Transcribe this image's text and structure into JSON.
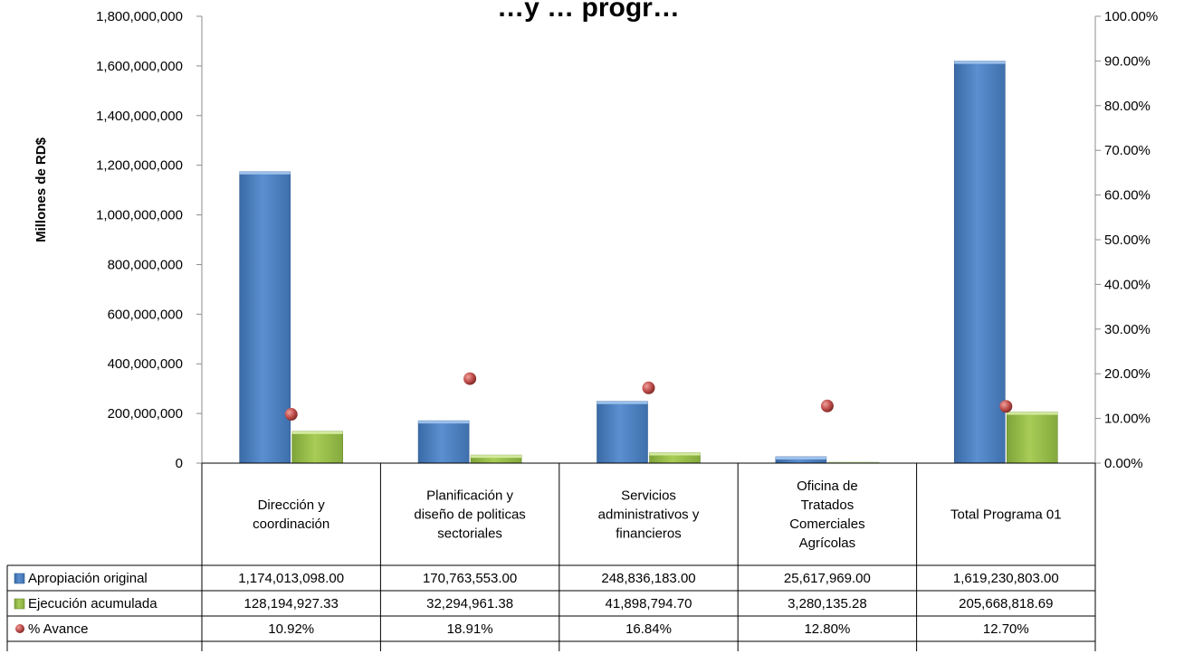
{
  "chart_data": {
    "type": "bar",
    "title": "…y … progr…",
    "ylabel": "Millones de RD$",
    "xlabel": "",
    "ylim": [
      0,
      1800000000
    ],
    "y2lim": [
      0,
      100
    ],
    "y_ticks": [
      "0",
      "200,000,000",
      "400,000,000",
      "600,000,000",
      "800,000,000",
      "1,000,000,000",
      "1,200,000,000",
      "1,400,000,000",
      "1,600,000,000",
      "1,800,000,000"
    ],
    "y2_ticks": [
      "0.00%",
      "10.00%",
      "20.00%",
      "30.00%",
      "40.00%",
      "50.00%",
      "60.00%",
      "70.00%",
      "80.00%",
      "90.00%",
      "100.00%"
    ],
    "categories": [
      [
        "Dirección y",
        "coordinación"
      ],
      [
        "Planificación y",
        "diseño de politicas",
        "sectoriales"
      ],
      [
        "Servicios",
        "administrativos y",
        "financieros"
      ],
      [
        "Oficina de",
        "Tratados",
        "Comerciales",
        "Agrícolas"
      ],
      [
        "Total Programa 01"
      ]
    ],
    "series": [
      {
        "name": "Apropiación original",
        "kind": "bar",
        "color": "#4F81BD",
        "values": [
          1174013098.0,
          170763553.0,
          248836183.0,
          25617969.0,
          1619230803.0
        ],
        "labels": [
          "1,174,013,098.00",
          "170,763,553.00",
          "248,836,183.00",
          "25,617,969.00",
          "1,619,230,803.00"
        ]
      },
      {
        "name": "Ejecución acumulada",
        "kind": "bar",
        "color": "#9BBB59",
        "values": [
          128194927.33,
          32294961.38,
          41898794.7,
          3280135.28,
          205668818.69
        ],
        "labels": [
          "128,194,927.33",
          "32,294,961.38",
          "41,898,794.70",
          "3,280,135.28",
          "205,668,818.69"
        ]
      },
      {
        "name": "% Avance",
        "kind": "scatter",
        "axis": "secondary",
        "color": "#C0504D",
        "values": [
          10.92,
          18.91,
          16.84,
          12.8,
          12.7
        ],
        "labels": [
          "10.92%",
          "18.91%",
          "16.84%",
          "12.80%",
          "12.70%"
        ]
      }
    ],
    "legend": "data-table",
    "grid": false
  }
}
